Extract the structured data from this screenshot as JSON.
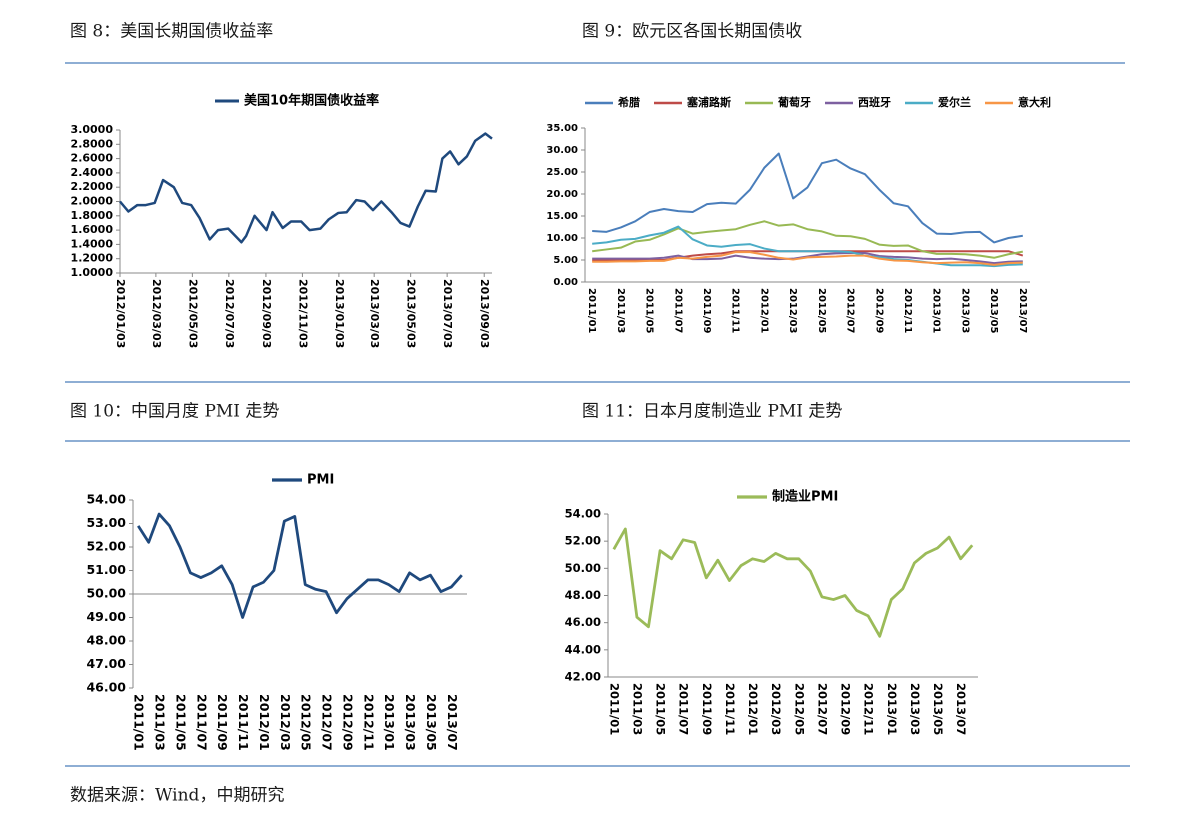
{
  "chart_data": [
    {
      "type": "line",
      "title": "图 8：美国长期国债收益率",
      "x": [
        "2012/01/03",
        "2012/01/17",
        "2012/02/01",
        "2012/02/15",
        "2012/03/01",
        "2012/03/15",
        "2012/04/02",
        "2012/04/16",
        "2012/05/01",
        "2012/05/15",
        "2012/06/01",
        "2012/06/15",
        "2012/07/02",
        "2012/07/16",
        "2012/07/24",
        "2012/08/01",
        "2012/08/15",
        "2012/09/04",
        "2012/09/14",
        "2012/10/01",
        "2012/10/15",
        "2012/11/01",
        "2012/11/15",
        "2012/12/03",
        "2012/12/17",
        "2013/01/02",
        "2013/01/16",
        "2013/02/01",
        "2013/02/15",
        "2013/03/01",
        "2013/03/15",
        "2013/04/01",
        "2013/04/16",
        "2013/05/01",
        "2013/05/15",
        "2013/05/28",
        "2013/06/14",
        "2013/06/25",
        "2013/07/08",
        "2013/07/22",
        "2013/08/05",
        "2013/08/19",
        "2013/09/05",
        "2013/09/16"
      ],
      "series": [
        {
          "name": "美国10年期国债收益率",
          "color": "#1f497d",
          "values": [
            2.0,
            1.86,
            1.95,
            1.95,
            1.98,
            2.3,
            2.2,
            1.98,
            1.95,
            1.77,
            1.47,
            1.6,
            1.62,
            1.5,
            1.43,
            1.52,
            1.8,
            1.6,
            1.85,
            1.63,
            1.72,
            1.72,
            1.6,
            1.62,
            1.75,
            1.84,
            1.85,
            2.02,
            2.0,
            1.88,
            2.0,
            1.85,
            1.7,
            1.65,
            1.93,
            2.15,
            2.14,
            2.6,
            2.7,
            2.52,
            2.63,
            2.85,
            2.95,
            2.88
          ]
        }
      ],
      "xlim": [
        "2012/01/03",
        "2013/09/16"
      ],
      "xticks": [
        "2012/01/03",
        "2012/03/03",
        "2012/05/03",
        "2012/07/03",
        "2012/09/03",
        "2012/11/03",
        "2013/01/03",
        "2013/03/03",
        "2013/05/03",
        "2013/07/03",
        "2013/09/03"
      ],
      "ylim": [
        1.0,
        3.0
      ],
      "yticks": [
        {
          "value": 1.0,
          "label": "1.0000"
        },
        {
          "value": 1.2,
          "label": "1.2000"
        },
        {
          "value": 1.4,
          "label": "1.4000"
        },
        {
          "value": 1.6,
          "label": "1.6000"
        },
        {
          "value": 1.8,
          "label": "1.8000"
        },
        {
          "value": 2.0,
          "label": "2.0000"
        },
        {
          "value": 2.2,
          "label": "2.2000"
        },
        {
          "value": 2.4,
          "label": "2.4000"
        },
        {
          "value": 2.6,
          "label": "2.6000"
        },
        {
          "value": 2.8,
          "label": "2.8000"
        },
        {
          "value": 3.0,
          "label": "3.0000"
        }
      ]
    },
    {
      "type": "line",
      "title": "图 9：欧元区各国长期国债收",
      "categories": [
        "2011/01",
        null,
        "2011/03",
        null,
        "2011/05",
        null,
        "2011/07",
        null,
        "2011/09",
        null,
        "2011/11",
        null,
        "2012/01",
        null,
        "2012/03",
        null,
        "2012/05",
        null,
        "2012/07",
        null,
        "2012/09",
        null,
        "2012/11",
        null,
        "2013/01",
        null,
        "2013/03",
        null,
        "2013/05",
        null,
        "2013/07"
      ],
      "series": [
        {
          "name": "希腊",
          "color": "#4a7ebb",
          "values": [
            11.6,
            11.4,
            12.4,
            13.8,
            15.9,
            16.6,
            16.1,
            15.9,
            17.7,
            18.0,
            17.8,
            21.0,
            26.0,
            29.2,
            19.0,
            21.5,
            27.0,
            27.8,
            25.8,
            24.5,
            21.0,
            17.9,
            17.2,
            13.4,
            11.0,
            10.9,
            11.3,
            11.4,
            9.0,
            10.0,
            10.5
          ]
        },
        {
          "name": "塞浦路斯",
          "color": "#be4b48",
          "values": [
            4.9,
            4.9,
            4.9,
            5.0,
            5.0,
            5.0,
            5.5,
            6.0,
            6.3,
            6.5,
            7.0,
            7.0,
            7.0,
            7.0,
            7.0,
            7.0,
            7.0,
            7.0,
            7.0,
            7.0,
            7.0,
            7.0,
            7.0,
            7.0,
            7.0,
            7.0,
            7.0,
            7.0,
            7.0,
            7.0,
            6.0
          ]
        },
        {
          "name": "葡萄牙",
          "color": "#98b954",
          "values": [
            7.0,
            7.4,
            7.8,
            9.2,
            9.6,
            10.8,
            12.2,
            11.0,
            11.4,
            11.7,
            12.0,
            13.0,
            13.8,
            12.8,
            13.1,
            12.0,
            11.5,
            10.5,
            10.4,
            9.8,
            8.5,
            8.2,
            8.3,
            7.0,
            6.4,
            6.4,
            6.3,
            6.0,
            5.5,
            6.3,
            6.9
          ]
        },
        {
          "name": "西班牙",
          "color": "#7d60a0",
          "values": [
            5.3,
            5.3,
            5.3,
            5.3,
            5.3,
            5.5,
            6.0,
            5.2,
            5.2,
            5.3,
            6.0,
            5.5,
            5.3,
            5.2,
            5.3,
            5.8,
            6.3,
            6.5,
            6.6,
            6.6,
            5.9,
            5.7,
            5.6,
            5.3,
            5.2,
            5.3,
            5.0,
            4.7,
            4.3,
            4.6,
            4.7
          ]
        },
        {
          "name": "爱尔兰",
          "color": "#4bacc6",
          "values": [
            8.7,
            9.0,
            9.6,
            9.8,
            10.6,
            11.2,
            12.6,
            9.7,
            8.3,
            8.0,
            8.4,
            8.6,
            7.6,
            7.0,
            7.0,
            7.0,
            7.0,
            7.0,
            6.8,
            6.0,
            5.6,
            5.2,
            5.0,
            4.6,
            4.2,
            3.8,
            3.8,
            3.8,
            3.6,
            3.9,
            4.0
          ]
        },
        {
          "name": "意大利",
          "color": "#f79646",
          "values": [
            4.6,
            4.6,
            4.7,
            4.7,
            4.8,
            4.8,
            5.5,
            5.3,
            5.7,
            6.0,
            6.8,
            6.8,
            6.2,
            5.5,
            5.1,
            5.6,
            5.7,
            5.8,
            6.0,
            6.0,
            5.3,
            4.9,
            4.8,
            4.5,
            4.3,
            4.4,
            4.5,
            4.3,
            3.9,
            4.3,
            4.4
          ]
        }
      ],
      "ylim": [
        0,
        35
      ],
      "yticks": [
        {
          "value": 0,
          "label": "0.00"
        },
        {
          "value": 5,
          "label": "5.00"
        },
        {
          "value": 10,
          "label": "10.00"
        },
        {
          "value": 15,
          "label": "15.00"
        },
        {
          "value": 20,
          "label": "20.00"
        },
        {
          "value": 25,
          "label": "25.00"
        },
        {
          "value": 30,
          "label": "30.00"
        },
        {
          "value": 35,
          "label": "35.00"
        }
      ]
    },
    {
      "type": "line",
      "title": "图 10：中国月度 PMI 走势",
      "categories": [
        "2011/01",
        null,
        "2011/03",
        null,
        "2011/05",
        null,
        "2011/07",
        null,
        "2011/09",
        null,
        "2011/11",
        null,
        "2012/01",
        null,
        "2012/03",
        null,
        "2012/05",
        null,
        "2012/07",
        null,
        "2012/09",
        null,
        "2012/11",
        null,
        "2013/01",
        null,
        "2013/03",
        null,
        "2013/05",
        null,
        "2013/07",
        null
      ],
      "series": [
        {
          "name": "PMI",
          "color": "#1f497d",
          "values": [
            52.9,
            52.2,
            53.4,
            52.9,
            52.0,
            50.9,
            50.7,
            50.9,
            51.2,
            50.4,
            49.0,
            50.3,
            50.5,
            51.0,
            53.1,
            53.3,
            50.4,
            50.2,
            50.1,
            49.2,
            49.8,
            50.2,
            50.6,
            50.6,
            50.4,
            50.1,
            50.9,
            50.6,
            50.8,
            50.1,
            50.3,
            50.8
          ]
        }
      ],
      "ylim": [
        46,
        54
      ],
      "x_axis_crosses": 50,
      "yticks": [
        {
          "value": 46,
          "label": "46.00"
        },
        {
          "value": 47,
          "label": "47.00"
        },
        {
          "value": 48,
          "label": "48.00"
        },
        {
          "value": 49,
          "label": "49.00"
        },
        {
          "value": 50,
          "label": "50.00"
        },
        {
          "value": 51,
          "label": "51.00"
        },
        {
          "value": 52,
          "label": "52.00"
        },
        {
          "value": 53,
          "label": "53.00"
        },
        {
          "value": 54,
          "label": "54.00"
        }
      ]
    },
    {
      "type": "line",
      "title": "图 11：日本月度制造业 PMI 走势",
      "categories": [
        "2011/01",
        null,
        "2011/03",
        null,
        "2011/05",
        null,
        "2011/07",
        null,
        "2011/09",
        null,
        "2011/11",
        null,
        "2012/01",
        null,
        "2012/03",
        null,
        "2012/05",
        null,
        "2012/07",
        null,
        "2012/09",
        null,
        "2012/11",
        null,
        "2013/01",
        null,
        "2013/03",
        null,
        "2013/05",
        null,
        "2013/07",
        null
      ],
      "series": [
        {
          "name": "制造业PMI",
          "color": "#9bbb59",
          "values": [
            51.4,
            52.9,
            46.4,
            45.7,
            51.3,
            50.7,
            52.1,
            51.9,
            49.3,
            50.6,
            49.1,
            50.2,
            50.7,
            50.5,
            51.1,
            50.7,
            50.7,
            49.8,
            47.9,
            47.7,
            48.0,
            46.9,
            46.5,
            45.0,
            47.7,
            48.5,
            50.4,
            51.1,
            51.5,
            52.3,
            50.7,
            51.7
          ]
        }
      ],
      "ylim": [
        42,
        54
      ],
      "yticks": [
        {
          "value": 42,
          "label": "42.00"
        },
        {
          "value": 44,
          "label": "44.00"
        },
        {
          "value": 46,
          "label": "46.00"
        },
        {
          "value": 48,
          "label": "48.00"
        },
        {
          "value": 50,
          "label": "50.00"
        },
        {
          "value": 52,
          "label": "52.00"
        },
        {
          "value": 54,
          "label": "54.00"
        }
      ]
    }
  ],
  "source": "数据来源：Wind，中期研究"
}
